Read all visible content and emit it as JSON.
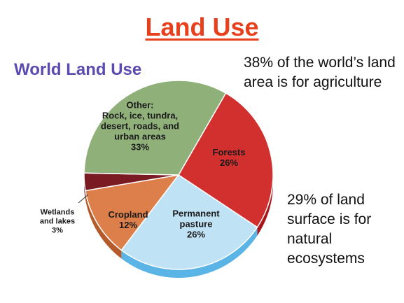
{
  "title": "Land Use",
  "subtitle": "World Land Use",
  "note_top": "38% of the world’s land area is for agriculture",
  "note_bottom": "29% of land surface is for natural ecosystems",
  "chart_data": {
    "type": "pie",
    "title": "World Land Use",
    "slices": [
      {
        "label": [
          "Forests",
          "26%"
        ],
        "value": 26,
        "color": "#d1302e",
        "side": "#a8161a"
      },
      {
        "label": [
          "Permanent",
          "pasture",
          "26%"
        ],
        "value": 26,
        "color": "#bfe3f5",
        "side": "#5ab4e6"
      },
      {
        "label": [
          "Cropland",
          "12%"
        ],
        "value": 12,
        "color": "#dd7f4a",
        "side": "#b55a2a"
      },
      {
        "label": [
          "Wetlands",
          "and lakes",
          "3%"
        ],
        "value": 3,
        "color": "#7a1a22",
        "side": "#5a0f16"
      },
      {
        "label": [
          "Other:",
          "Rock, ice, tundra,",
          "desert, roads, and",
          "urban areas",
          "33%"
        ],
        "value": 33,
        "color": "#90b07a",
        "side": "#6e8d5a"
      }
    ]
  }
}
